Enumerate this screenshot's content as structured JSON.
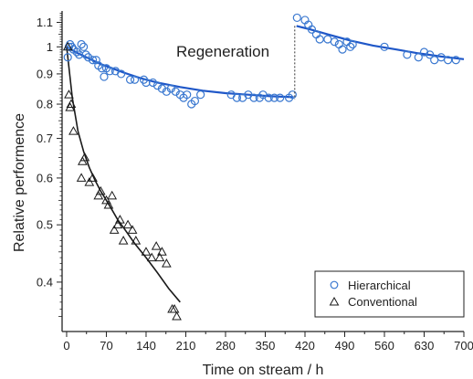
{
  "chart_data": {
    "type": "scatter",
    "xlabel": "Time on stream / h",
    "ylabel": "Relative performence",
    "xlim": [
      -8,
      700
    ],
    "ylim": [
      0.33,
      1.15
    ],
    "yscale": "log",
    "xticks": [
      0,
      70,
      140,
      210,
      280,
      350,
      420,
      490,
      560,
      630,
      700
    ],
    "yticks": [
      0.4,
      0.5,
      0.6,
      0.7,
      0.8,
      0.9,
      1,
      1.1
    ],
    "legend_position": "bottom-right",
    "annotations": [
      {
        "text": "Regeneration",
        "x": 295,
        "y": 1.0
      },
      {
        "type": "vertical-dotted-line",
        "x": 402,
        "y_from": 0.815,
        "y_to": 1.085
      }
    ],
    "series": [
      {
        "name": "Hierarchical",
        "marker": "circle",
        "color": "#3a78d0",
        "points": [
          [
            2,
            0.96
          ],
          [
            4,
            1.0
          ],
          [
            6,
            1.01
          ],
          [
            9,
            1.0
          ],
          [
            12,
            0.99
          ],
          [
            18,
            0.98
          ],
          [
            22,
            0.97
          ],
          [
            26,
            1.01
          ],
          [
            30,
            1.0
          ],
          [
            34,
            0.97
          ],
          [
            38,
            0.96
          ],
          [
            46,
            0.95
          ],
          [
            52,
            0.95
          ],
          [
            56,
            0.93
          ],
          [
            62,
            0.92
          ],
          [
            66,
            0.89
          ],
          [
            70,
            0.92
          ],
          [
            76,
            0.91
          ],
          [
            86,
            0.91
          ],
          [
            96,
            0.9
          ],
          [
            112,
            0.88
          ],
          [
            120,
            0.88
          ],
          [
            136,
            0.88
          ],
          [
            140,
            0.87
          ],
          [
            152,
            0.87
          ],
          [
            160,
            0.86
          ],
          [
            168,
            0.85
          ],
          [
            176,
            0.84
          ],
          [
            184,
            0.85
          ],
          [
            192,
            0.84
          ],
          [
            200,
            0.83
          ],
          [
            206,
            0.82
          ],
          [
            212,
            0.83
          ],
          [
            220,
            0.8
          ],
          [
            226,
            0.81
          ],
          [
            236,
            0.83
          ],
          [
            290,
            0.83
          ],
          [
            300,
            0.82
          ],
          [
            310,
            0.82
          ],
          [
            320,
            0.83
          ],
          [
            330,
            0.82
          ],
          [
            340,
            0.82
          ],
          [
            346,
            0.83
          ],
          [
            356,
            0.82
          ],
          [
            366,
            0.82
          ],
          [
            376,
            0.82
          ],
          [
            392,
            0.82
          ],
          [
            398,
            0.83
          ],
          [
            406,
            1.12
          ],
          [
            420,
            1.11
          ],
          [
            426,
            1.09
          ],
          [
            432,
            1.07
          ],
          [
            440,
            1.05
          ],
          [
            446,
            1.03
          ],
          [
            460,
            1.03
          ],
          [
            472,
            1.02
          ],
          [
            480,
            1.01
          ],
          [
            486,
            0.99
          ],
          [
            494,
            1.02
          ],
          [
            500,
            1.0
          ],
          [
            504,
            1.01
          ],
          [
            560,
            1.0
          ],
          [
            600,
            0.97
          ],
          [
            620,
            0.96
          ],
          [
            630,
            0.98
          ],
          [
            640,
            0.97
          ],
          [
            648,
            0.95
          ],
          [
            660,
            0.96
          ],
          [
            672,
            0.95
          ],
          [
            686,
            0.95
          ]
        ],
        "fit": {
          "segments": [
            {
              "x": [
                0,
                20,
                40,
                60,
                80,
                100,
                130,
                160,
                200,
                240,
                280,
                320,
                360,
                400
              ],
              "y": [
                1.0,
                0.975,
                0.955,
                0.935,
                0.92,
                0.905,
                0.885,
                0.87,
                0.855,
                0.843,
                0.835,
                0.83,
                0.825,
                0.822
              ]
            },
            {
              "x": [
                405,
                430,
                460,
                500,
                540,
                580,
                620,
                660,
                700
              ],
              "y": [
                1.085,
                1.07,
                1.05,
                1.025,
                1.005,
                0.99,
                0.975,
                0.963,
                0.953
              ]
            }
          ]
        }
      },
      {
        "name": "Conventional",
        "marker": "triangle",
        "color": "#1a1a1a",
        "points": [
          [
            2,
            1.0
          ],
          [
            4,
            0.83
          ],
          [
            6,
            0.79
          ],
          [
            8,
            0.8
          ],
          [
            12,
            0.72
          ],
          [
            26,
            0.6
          ],
          [
            28,
            0.64
          ],
          [
            32,
            0.65
          ],
          [
            40,
            0.59
          ],
          [
            46,
            0.6
          ],
          [
            56,
            0.56
          ],
          [
            60,
            0.57
          ],
          [
            70,
            0.55
          ],
          [
            74,
            0.54
          ],
          [
            80,
            0.56
          ],
          [
            84,
            0.49
          ],
          [
            90,
            0.5
          ],
          [
            94,
            0.51
          ],
          [
            100,
            0.47
          ],
          [
            108,
            0.5
          ],
          [
            116,
            0.49
          ],
          [
            122,
            0.47
          ],
          [
            140,
            0.45
          ],
          [
            150,
            0.44
          ],
          [
            158,
            0.46
          ],
          [
            164,
            0.44
          ],
          [
            168,
            0.45
          ],
          [
            176,
            0.43
          ],
          [
            186,
            0.36
          ],
          [
            190,
            0.36
          ],
          [
            194,
            0.35
          ]
        ],
        "fit": {
          "segments": [
            {
              "x": [
                0,
                10,
                20,
                30,
                40,
                50,
                60,
                70,
                80,
                90,
                100,
                120,
                140,
                160,
                180,
                200
              ],
              "y": [
                1.0,
                0.82,
                0.72,
                0.665,
                0.625,
                0.595,
                0.57,
                0.55,
                0.53,
                0.51,
                0.495,
                0.465,
                0.44,
                0.415,
                0.39,
                0.37
              ]
            }
          ]
        }
      }
    ]
  }
}
